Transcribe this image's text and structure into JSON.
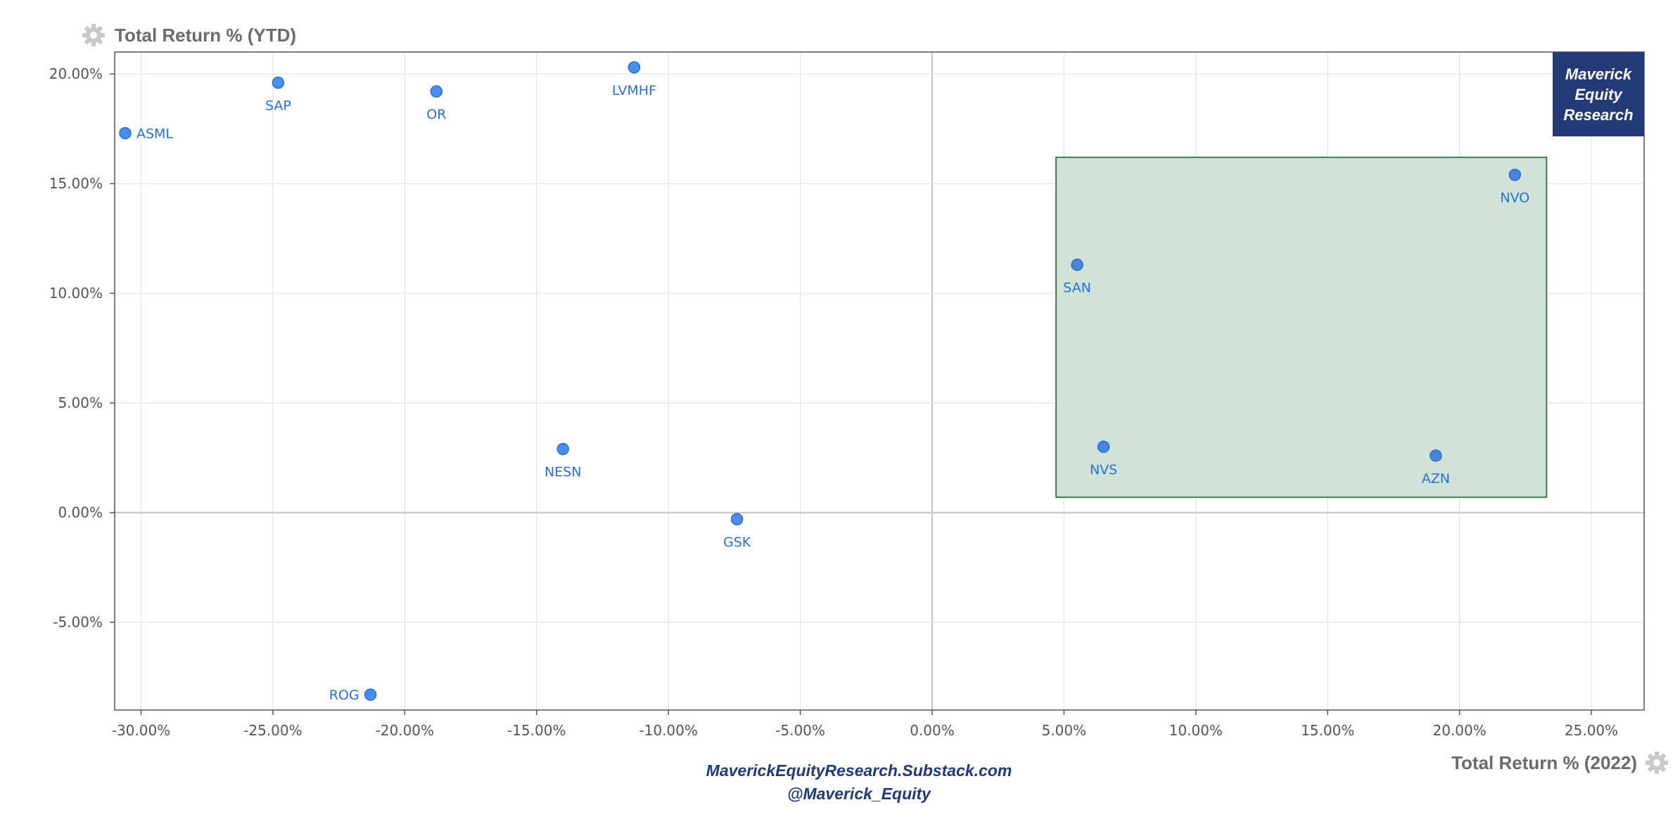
{
  "chart_data": {
    "type": "scatter",
    "xlabel": "Total Return % (2022)",
    "ylabel": "Total Return % (YTD)",
    "xlim": [
      -31,
      27
    ],
    "ylim": [
      -9,
      21
    ],
    "x_ticks": [
      -30,
      -25,
      -20,
      -15,
      -10,
      -5,
      0,
      5,
      10,
      15,
      20,
      25
    ],
    "x_tick_labels": [
      "-30.00%",
      "-25.00%",
      "-20.00%",
      "-15.00%",
      "-10.00%",
      "-5.00%",
      "0.00%",
      "5.00%",
      "10.00%",
      "15.00%",
      "20.00%",
      "25.00%"
    ],
    "y_ticks": [
      20,
      15,
      10,
      5,
      0,
      -5
    ],
    "y_tick_labels": [
      "20.00%",
      "15.00%",
      "10.00%",
      "5.00%",
      "0.00%",
      "-5.00%"
    ],
    "grid": true,
    "points": [
      {
        "label": "ASML",
        "x": -30.6,
        "y": 17.3,
        "label_pos": "right"
      },
      {
        "label": "SAP",
        "x": -24.8,
        "y": 19.6,
        "label_pos": "below"
      },
      {
        "label": "OR",
        "x": -18.8,
        "y": 19.2,
        "label_pos": "below"
      },
      {
        "label": "LVMHF",
        "x": -11.3,
        "y": 20.3,
        "label_pos": "below"
      },
      {
        "label": "NESN",
        "x": -14.0,
        "y": 2.9,
        "label_pos": "below"
      },
      {
        "label": "GSK",
        "x": -7.4,
        "y": -0.3,
        "label_pos": "below"
      },
      {
        "label": "ROG",
        "x": -21.3,
        "y": -8.3,
        "label_pos": "left"
      },
      {
        "label": "SAN",
        "x": 5.5,
        "y": 11.3,
        "label_pos": "below"
      },
      {
        "label": "NVS",
        "x": 6.5,
        "y": 3.0,
        "label_pos": "below"
      },
      {
        "label": "AZN",
        "x": 19.1,
        "y": 2.6,
        "label_pos": "below"
      },
      {
        "label": "NVO",
        "x": 22.1,
        "y": 15.4,
        "label_pos": "below"
      }
    ],
    "highlight_region": {
      "x": [
        4.7,
        23.3
      ],
      "y": [
        0.7,
        16.2
      ],
      "fill": "#d0e3d8",
      "stroke": "#3f7a4f"
    },
    "colors": {
      "point": "#4a8ff0",
      "point_stroke": "#2d6ccc",
      "highlight_point": "#4a86d8",
      "grid": "#e3e3e3",
      "zero_line": "#cccccc"
    }
  },
  "watermark": {
    "lines": [
      "Maverick",
      "Equity",
      "Research"
    ],
    "bg": "#243a78"
  },
  "footer": {
    "line1": "MaverickEquityResearch.Substack.com",
    "line2": "@Maverick_Equity"
  },
  "icons": {
    "y_title_icon": "gear-icon",
    "x_title_icon": "gear-icon"
  }
}
